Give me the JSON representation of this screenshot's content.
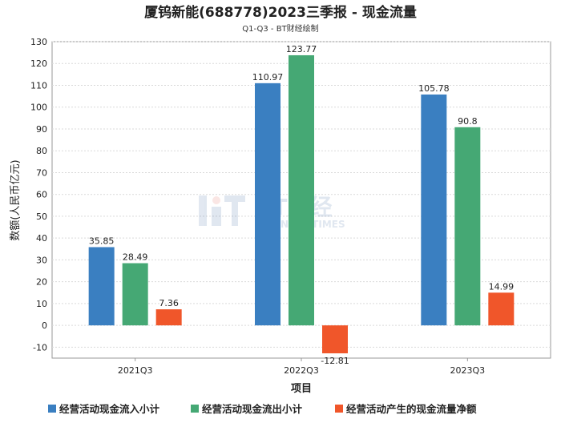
{
  "chart_data": {
    "type": "bar",
    "title": "厦钨新能(688778)2023三季报 - 现金流量",
    "subtitle": "Q1-Q3 - BT财经绘制",
    "xlabel": "项目",
    "ylabel": "数额(人民币亿元)",
    "categories": [
      "2021Q3",
      "2022Q3",
      "2023Q3"
    ],
    "series": [
      {
        "name": "经营活动现金流入小计",
        "color": "#3a7fc1",
        "values": [
          35.85,
          110.97,
          105.78
        ],
        "labels": [
          "35.85",
          "110.97",
          "105.78"
        ]
      },
      {
        "name": "经营活动现金流出小计",
        "color": "#45a874",
        "values": [
          28.49,
          123.77,
          90.8
        ],
        "labels": [
          "28.49",
          "123.77",
          "90.8"
        ]
      },
      {
        "name": "经营活动产生的现金流量净额",
        "color": "#f0562a",
        "values": [
          7.36,
          -12.81,
          14.99
        ],
        "labels": [
          "7.36",
          "-12.81",
          "14.99"
        ]
      }
    ],
    "ylim": [
      -15,
      130
    ],
    "yticks": [
      -10,
      0,
      10,
      20,
      30,
      40,
      50,
      60,
      70,
      80,
      90,
      100,
      110,
      120,
      130
    ],
    "grid": true,
    "legend_position": "bottom",
    "watermark": {
      "main": "BT财经",
      "sub": "BUSINESS TIMES"
    }
  }
}
